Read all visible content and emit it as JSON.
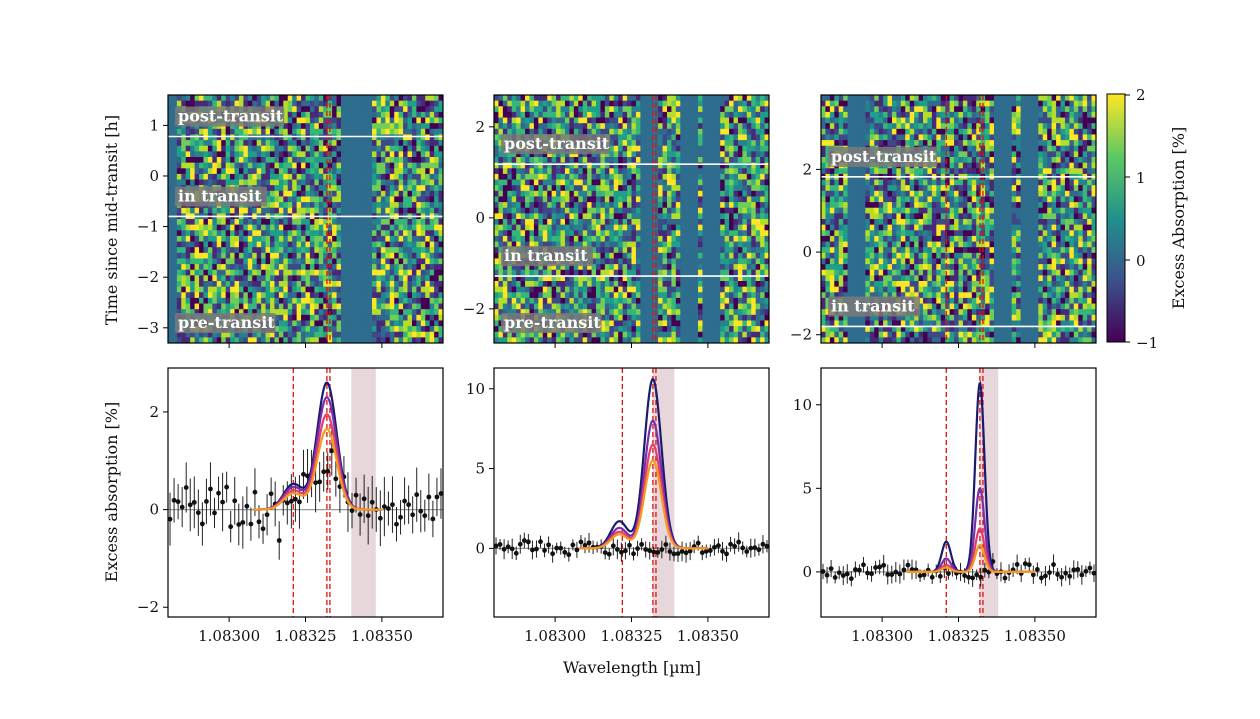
{
  "figure": {
    "colorbar": {
      "label": "Excess Absorption [%]",
      "ticks": [
        "2",
        "1",
        "0",
        "−1"
      ],
      "cmap": "viridis",
      "vmin": -1,
      "vmax": 2
    },
    "ylabel_top": "Time since mid-transit [h]",
    "ylabel_bottom": "Excess absorption [%]",
    "xlabel": "Wavelength [µm]"
  },
  "chart_data": [
    {
      "type": "heatmap",
      "panel": "top-left",
      "ylim": [
        -3.3,
        1.6
      ],
      "yticks": [
        "1",
        "0",
        "−1",
        "−2",
        "−3"
      ],
      "labels": [
        "post-transit",
        "in transit",
        "pre-transit"
      ],
      "ingress_egress_lines_h": [
        0.78,
        -0.8
      ],
      "marker_lines_um": [
        1.08332,
        1.08333
      ],
      "masked_columns": [
        "1.08280",
        "1.08340",
        "1.08344"
      ]
    },
    {
      "type": "heatmap",
      "panel": "top-middle",
      "ylim": [
        -2.75,
        2.7
      ],
      "yticks": [
        "2",
        "0",
        "−2"
      ],
      "labels": [
        "post-transit",
        "in transit",
        "pre-transit"
      ],
      "ingress_egress_lines_h": [
        1.18,
        -1.28
      ],
      "marker_lines_um": [
        1.08332,
        1.08333
      ],
      "masked_columns": [
        "1.08275",
        "1.08331",
        "1.08344",
        "1.08351"
      ]
    },
    {
      "type": "heatmap",
      "panel": "top-right",
      "ylim": [
        -2.2,
        3.8
      ],
      "yticks": [
        "2",
        "0",
        "−2"
      ],
      "labels": [
        "post-transit",
        "in transit"
      ],
      "ingress_egress_lines_h": [
        1.82,
        -1.8
      ],
      "marker_lines_um": [
        1.08321,
        1.08332,
        1.08333
      ],
      "masked_columns": [
        "1.08292",
        "1.08339",
        "1.08348"
      ]
    },
    {
      "type": "line",
      "panel": "bottom-left",
      "xlim": [
        1.0828,
        1.0837
      ],
      "ylim": [
        -2.2,
        2.9
      ],
      "xticks": [
        "1.08300",
        "1.08325",
        "1.08350"
      ],
      "yticks": [
        "2",
        "0",
        "−2"
      ],
      "marker_lines_um": [
        1.08321,
        1.08332,
        1.08333
      ],
      "shaded_band_um": [
        1.0834,
        1.08348
      ],
      "model_peaks": [
        2.6,
        2.3,
        1.95,
        1.65
      ],
      "series_colors": [
        "#1a1a6e",
        "#7b2ea8",
        "#e0406f",
        "#f59a1a"
      ]
    },
    {
      "type": "line",
      "panel": "bottom-middle",
      "xlim": [
        1.0828,
        1.0837
      ],
      "ylim": [
        -4.3,
        11.3
      ],
      "xticks": [
        "1.08300",
        "1.08325",
        "1.08350"
      ],
      "yticks": [
        "10",
        "5",
        "0"
      ],
      "marker_lines_um": [
        1.08322,
        1.08332,
        1.08333
      ],
      "shaded_band_um": [
        1.08332,
        1.08339
      ],
      "model_peaks": [
        10.6,
        8.0,
        6.5,
        5.5
      ],
      "series_colors": [
        "#1a1a6e",
        "#7b2ea8",
        "#e0406f",
        "#f59a1a"
      ]
    },
    {
      "type": "line",
      "panel": "bottom-right",
      "xlim": [
        1.0828,
        1.0837
      ],
      "ylim": [
        -2.7,
        12.2
      ],
      "xticks": [
        "1.08300",
        "1.08325",
        "1.08350"
      ],
      "yticks": [
        "10",
        "5",
        "0"
      ],
      "marker_lines_um": [
        1.08321,
        1.08332,
        1.08333
      ],
      "shaded_band_um": [
        1.08332,
        1.08338
      ],
      "model_peaks": [
        11.3,
        5.0,
        2.6,
        1.6
      ],
      "series_colors": [
        "#1a1a6e",
        "#7b2ea8",
        "#e0406f",
        "#f59a1a"
      ]
    }
  ]
}
